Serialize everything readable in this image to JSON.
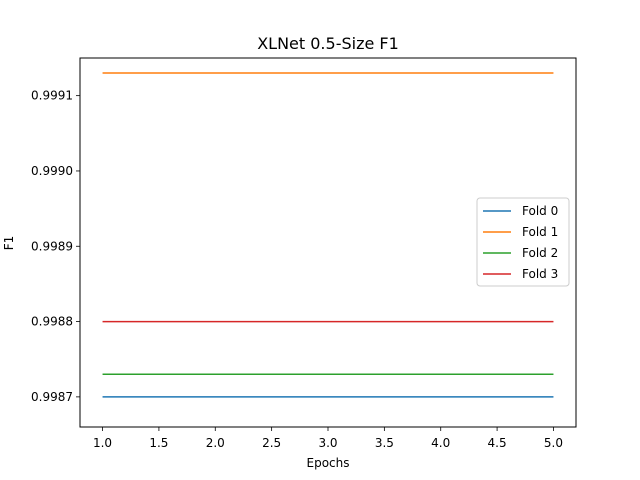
{
  "chart_data": {
    "type": "line",
    "title": "XLNet 0.5-Size F1",
    "xlabel": "Epochs",
    "ylabel": "F1",
    "x": [
      1,
      2,
      3,
      4,
      5
    ],
    "xlim": [
      0.8,
      5.2
    ],
    "ylim": [
      0.99866,
      0.99915
    ],
    "x_ticks": [
      1.0,
      1.5,
      2.0,
      2.5,
      3.0,
      3.5,
      4.0,
      4.5,
      5.0
    ],
    "x_tick_labels": [
      "1.0",
      "1.5",
      "2.0",
      "2.5",
      "3.0",
      "3.5",
      "4.0",
      "4.5",
      "5.0"
    ],
    "y_ticks": [
      0.9987,
      0.9988,
      0.9989,
      0.999,
      0.9991
    ],
    "y_tick_labels": [
      "0.9987",
      "0.9988",
      "0.9989",
      "0.9990",
      "0.9991"
    ],
    "grid": false,
    "legend_position": "right",
    "series": [
      {
        "name": "Fold 0",
        "color": "#1f77b4",
        "values": [
          0.9987,
          0.9987,
          0.9987,
          0.9987,
          0.9987
        ]
      },
      {
        "name": "Fold 1",
        "color": "#ff7f0e",
        "values": [
          0.99913,
          0.99913,
          0.99913,
          0.99913,
          0.99913
        ]
      },
      {
        "name": "Fold 2",
        "color": "#2ca02c",
        "values": [
          0.99873,
          0.99873,
          0.99873,
          0.99873,
          0.99873
        ]
      },
      {
        "name": "Fold 3",
        "color": "#d62728",
        "values": [
          0.9988,
          0.9988,
          0.9988,
          0.9988,
          0.9988
        ]
      }
    ]
  }
}
